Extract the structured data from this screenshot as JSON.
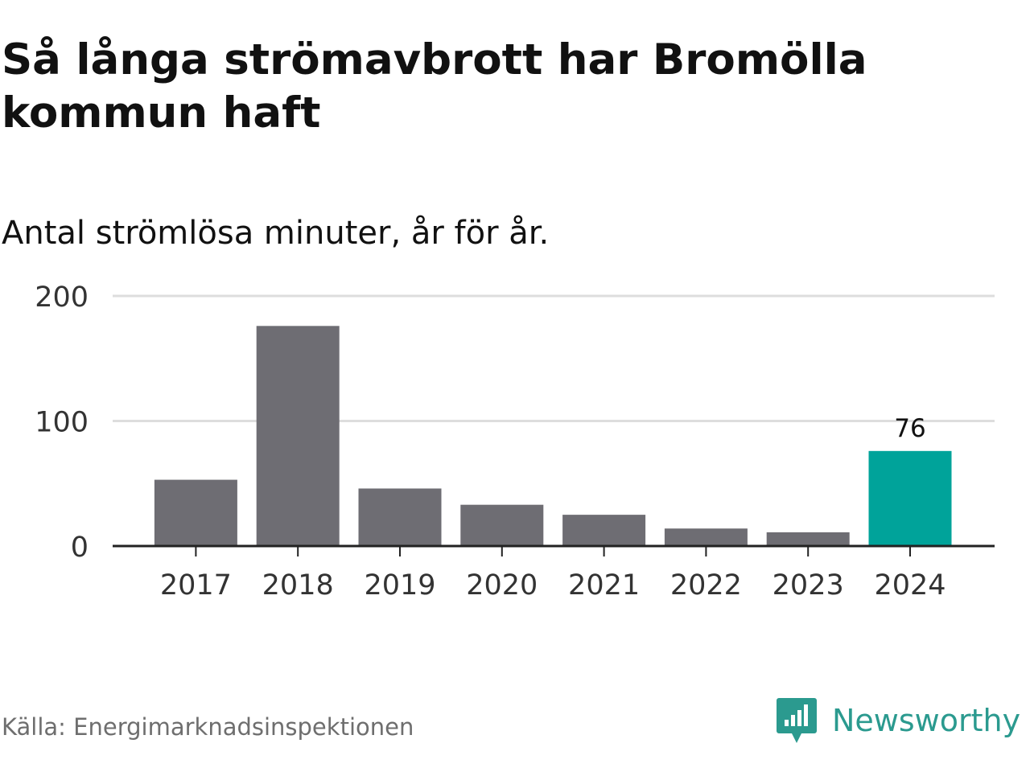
{
  "title": "Så långa strömavbrott har Bromölla kommun haft",
  "subtitle": "Antal strömlösa minuter, år för år.",
  "source": "Källa: Energimarknadsinspektionen",
  "brand": {
    "name": "Newsworthy",
    "icon": "newsworthy-chart-bubble-icon",
    "color": "#2b9a8f"
  },
  "colors": {
    "bar": "#6e6d73",
    "highlight": "#00a39a",
    "grid": "#dddddd",
    "axis": "#222222",
    "tick_text": "#333333"
  },
  "chart_data": {
    "type": "bar",
    "categories": [
      "2017",
      "2018",
      "2019",
      "2020",
      "2021",
      "2022",
      "2023",
      "2024"
    ],
    "values": [
      53,
      176,
      46,
      33,
      25,
      14,
      11,
      76
    ],
    "highlight_index": 7,
    "data_labels": {
      "7": "76"
    },
    "yticks": [
      0,
      100,
      200
    ],
    "ytick_labels": [
      "0",
      "100",
      "200"
    ],
    "ylim": [
      0,
      200
    ],
    "xlabel": "",
    "ylabel": "",
    "grid": true,
    "legend": "none"
  }
}
